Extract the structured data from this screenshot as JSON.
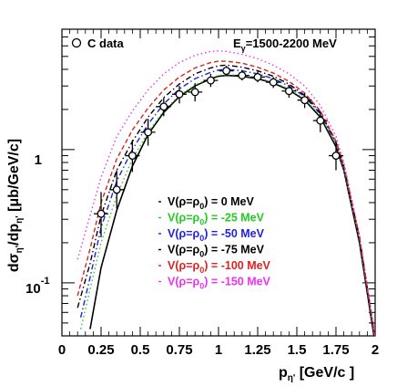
{
  "chart_data": {
    "type": "line",
    "xlabel_main": "p",
    "xlabel_sub": "η'",
    "xlabel_unit": " [GeV/c ]",
    "ylabel_main": "dσ",
    "ylabel_sub1": "η'",
    "ylabel_mid": "/dp",
    "ylabel_sub2": "η'",
    "ylabel_unit": " [μb/GeV/c]",
    "xlim": [
      0,
      2
    ],
    "ylim": [
      0.04,
      8
    ],
    "y_scale": "log",
    "x_ticks": [
      "0",
      "0.25",
      "0.5",
      "0.75",
      "1",
      "1.25",
      "1.5",
      "1.75",
      "2"
    ],
    "x_tick_values": [
      0,
      0.25,
      0.5,
      0.75,
      1,
      1.25,
      1.5,
      1.75,
      2
    ],
    "y_tick_one": "1",
    "y_tick_ten": "10",
    "y_tick_ten_exp": "-1",
    "annotation_left": "C data",
    "annotation_right_main": "E",
    "annotation_right_sub": "γ",
    "annotation_right_tail": "=1500-2200 MeV",
    "data_series": {
      "name": "C data",
      "points": [
        {
          "x": 0.25,
          "y": 0.33,
          "ylo": 0.22,
          "yhi": 0.48
        },
        {
          "x": 0.35,
          "y": 0.5,
          "ylo": 0.36,
          "yhi": 0.7
        },
        {
          "x": 0.45,
          "y": 0.9,
          "ylo": 0.68,
          "yhi": 1.18
        },
        {
          "x": 0.55,
          "y": 1.35,
          "ylo": 1.07,
          "yhi": 1.7
        },
        {
          "x": 0.65,
          "y": 2.1,
          "ylo": 1.78,
          "yhi": 2.45
        },
        {
          "x": 0.75,
          "y": 2.6,
          "ylo": 2.22,
          "yhi": 3.0
        },
        {
          "x": 0.85,
          "y": 2.7,
          "ylo": 2.3,
          "yhi": 3.15
        },
        {
          "x": 0.95,
          "y": 3.3,
          "ylo": 2.95,
          "yhi": 3.7
        },
        {
          "x": 1.05,
          "y": 3.9,
          "ylo": 3.55,
          "yhi": 4.25
        },
        {
          "x": 1.15,
          "y": 3.6,
          "ylo": 3.3,
          "yhi": 3.95
        },
        {
          "x": 1.25,
          "y": 3.5,
          "ylo": 3.2,
          "yhi": 3.85
        },
        {
          "x": 1.35,
          "y": 3.2,
          "ylo": 2.9,
          "yhi": 3.5
        },
        {
          "x": 1.45,
          "y": 2.75,
          "ylo": 2.45,
          "yhi": 3.05
        },
        {
          "x": 1.55,
          "y": 2.35,
          "ylo": 2.05,
          "yhi": 2.65
        },
        {
          "x": 1.65,
          "y": 1.65,
          "ylo": 1.35,
          "yhi": 1.95
        },
        {
          "x": 1.75,
          "y": 0.9,
          "ylo": 0.7,
          "yhi": 1.12
        }
      ]
    },
    "series": [
      {
        "label_main": "V(ρ=ρ",
        "label_sub": "0",
        "label_tail": ") = 0 MeV",
        "color": "#000000",
        "dash": "solid",
        "x": [
          0.18,
          0.25,
          0.35,
          0.45,
          0.55,
          0.65,
          0.75,
          0.85,
          0.95,
          1.0,
          1.05,
          1.15,
          1.25,
          1.35,
          1.45,
          1.55,
          1.65,
          1.75,
          1.8,
          1.9,
          2.0
        ],
        "y": [
          0.045,
          0.13,
          0.35,
          0.75,
          1.3,
          1.9,
          2.5,
          3.0,
          3.4,
          3.55,
          3.6,
          3.55,
          3.4,
          3.15,
          2.8,
          2.35,
          1.75,
          1.05,
          0.7,
          0.2,
          0.035
        ]
      },
      {
        "label_main": "V(ρ=ρ",
        "label_sub": "0",
        "label_tail": ") = -25 MeV",
        "color": "#22cc22",
        "dash": "dot",
        "x": [
          0.12,
          0.18,
          0.25,
          0.35,
          0.45,
          0.55,
          0.65,
          0.75,
          0.85,
          0.95,
          1.0,
          1.05,
          1.15,
          1.25,
          1.35,
          1.45,
          1.55,
          1.65,
          1.75,
          1.8,
          1.9,
          2.0
        ],
        "y": [
          0.045,
          0.09,
          0.2,
          0.45,
          0.85,
          1.35,
          1.95,
          2.55,
          3.05,
          3.45,
          3.6,
          3.65,
          3.6,
          3.45,
          3.2,
          2.85,
          2.4,
          1.8,
          1.1,
          0.72,
          0.21,
          0.037
        ]
      },
      {
        "label_main": "V(ρ=ρ",
        "label_sub": "0",
        "label_tail": ") = -50 MeV",
        "color": "#2222dd",
        "dash": "dashdot",
        "x": [
          0.12,
          0.18,
          0.25,
          0.35,
          0.45,
          0.55,
          0.65,
          0.75,
          0.85,
          0.95,
          1.0,
          1.05,
          1.15,
          1.25,
          1.35,
          1.45,
          1.55,
          1.65,
          1.75,
          1.8,
          1.9,
          2.0
        ],
        "y": [
          0.055,
          0.11,
          0.26,
          0.58,
          1.0,
          1.55,
          2.2,
          2.85,
          3.4,
          3.8,
          3.95,
          4.0,
          3.9,
          3.7,
          3.4,
          3.0,
          2.5,
          1.85,
          1.12,
          0.74,
          0.22,
          0.038
        ]
      },
      {
        "label_main": "V(ρ=ρ",
        "label_sub": "0",
        "label_tail": ") = -75 MeV",
        "color": "#000000",
        "dash": "dashdot",
        "x": [
          0.1,
          0.18,
          0.25,
          0.35,
          0.45,
          0.55,
          0.65,
          0.75,
          0.85,
          0.95,
          1.0,
          1.05,
          1.15,
          1.25,
          1.35,
          1.45,
          1.55,
          1.65,
          1.75,
          1.8,
          1.9,
          2.0
        ],
        "y": [
          0.065,
          0.14,
          0.32,
          0.7,
          1.15,
          1.75,
          2.45,
          3.1,
          3.7,
          4.1,
          4.25,
          4.3,
          4.15,
          3.9,
          3.55,
          3.1,
          2.55,
          1.9,
          1.14,
          0.75,
          0.22,
          0.038
        ]
      },
      {
        "label_main": "V(ρ=ρ",
        "label_sub": "0",
        "label_tail": ") = -100 MeV",
        "color": "#dd2222",
        "dash": "dash",
        "x": [
          0.1,
          0.18,
          0.25,
          0.35,
          0.45,
          0.55,
          0.65,
          0.75,
          0.85,
          0.95,
          1.0,
          1.05,
          1.15,
          1.25,
          1.35,
          1.45,
          1.55,
          1.65,
          1.75,
          1.8,
          1.9,
          2.0
        ],
        "y": [
          0.08,
          0.18,
          0.4,
          0.85,
          1.4,
          2.05,
          2.8,
          3.5,
          4.1,
          4.5,
          4.6,
          4.6,
          4.45,
          4.15,
          3.75,
          3.25,
          2.65,
          1.95,
          1.16,
          0.76,
          0.22,
          0.038
        ]
      },
      {
        "label_main": "V(ρ=ρ",
        "label_sub": "0",
        "label_tail": ") = -150 MeV",
        "color": "#ee33ee",
        "dash": "dot",
        "x": [
          0.1,
          0.18,
          0.25,
          0.35,
          0.45,
          0.55,
          0.65,
          0.75,
          0.85,
          0.95,
          1.0,
          1.05,
          1.15,
          1.25,
          1.35,
          1.45,
          1.55,
          1.65,
          1.75,
          1.8,
          1.9,
          2.0
        ],
        "y": [
          0.15,
          0.32,
          0.62,
          1.25,
          1.95,
          2.8,
          3.7,
          4.5,
          5.1,
          5.45,
          5.5,
          5.45,
          5.2,
          4.8,
          4.3,
          3.7,
          3.0,
          2.15,
          1.25,
          0.8,
          0.23,
          0.04
        ]
      }
    ]
  }
}
